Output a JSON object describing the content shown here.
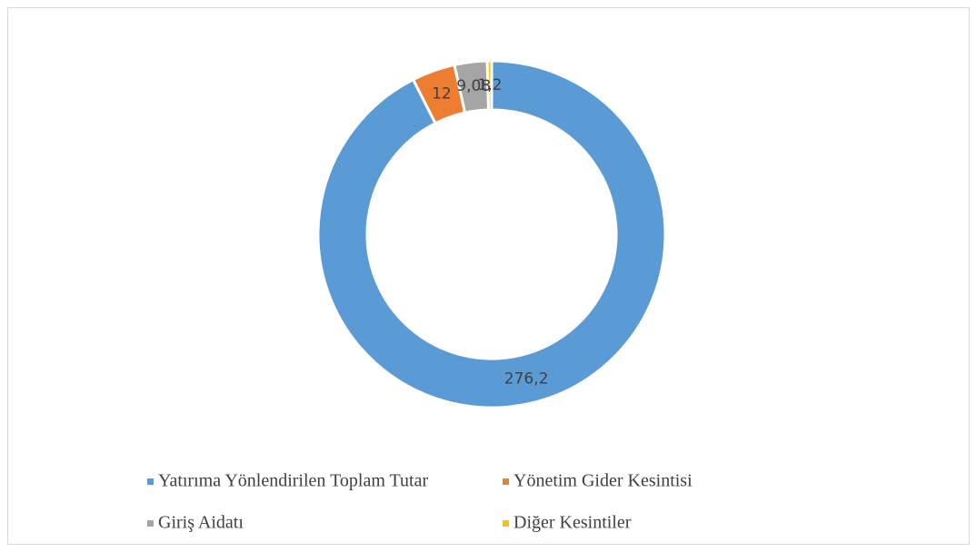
{
  "chart_data": {
    "type": "donut",
    "categories": [
      "Yatırıma Yönlendirilen Toplam Tutar",
      "Yönetim Gider Kesintisi",
      "Giriş Aidatı",
      "Diğer Kesintiler"
    ],
    "values": [
      276.2,
      12,
      9.08,
      1.2
    ],
    "value_labels": [
      "276,2",
      "12",
      "9,08",
      "1,2"
    ],
    "colors": [
      "#5b9bd5",
      "#ed7d31",
      "#a5a5a5",
      "#ffc000"
    ],
    "legend": "bottom"
  }
}
